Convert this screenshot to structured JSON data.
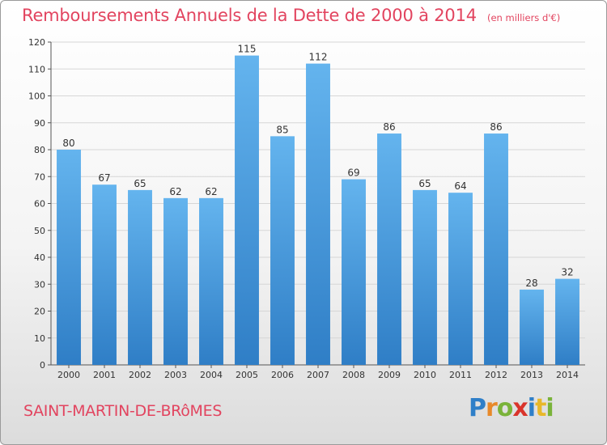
{
  "chart_data": {
    "type": "bar",
    "title": "Remboursements Annuels de la Dette de 2000 à 2014",
    "subtitle": "(en milliers d'€)",
    "categories": [
      "2000",
      "2001",
      "2002",
      "2003",
      "2004",
      "2005",
      "2006",
      "2007",
      "2008",
      "2009",
      "2010",
      "2011",
      "2012",
      "2013",
      "2014"
    ],
    "values": [
      80,
      67,
      65,
      62,
      62,
      115,
      85,
      112,
      69,
      86,
      65,
      64,
      86,
      28,
      32
    ],
    "ylim": [
      0,
      120
    ],
    "yticks": [
      0,
      10,
      20,
      30,
      40,
      50,
      60,
      70,
      80,
      90,
      100,
      110,
      120
    ],
    "grid": true,
    "bar_color": "#4a9fe0",
    "xlabel": "",
    "ylabel": ""
  },
  "footer": {
    "commune": "SAINT-MARTIN-DE-BRôMES",
    "logo_letters": [
      {
        "ch": "P",
        "color": "#2f7fc8"
      },
      {
        "ch": "r",
        "color": "#e8892a"
      },
      {
        "ch": "o",
        "color": "#7ab33a"
      },
      {
        "ch": "x",
        "color": "#d9342b"
      },
      {
        "ch": "i",
        "color": "#2f7fc8"
      },
      {
        "ch": "t",
        "color": "#e8b82a"
      },
      {
        "ch": "i",
        "color": "#7ab33a"
      }
    ]
  },
  "colors": {
    "accent": "#e2445f"
  }
}
